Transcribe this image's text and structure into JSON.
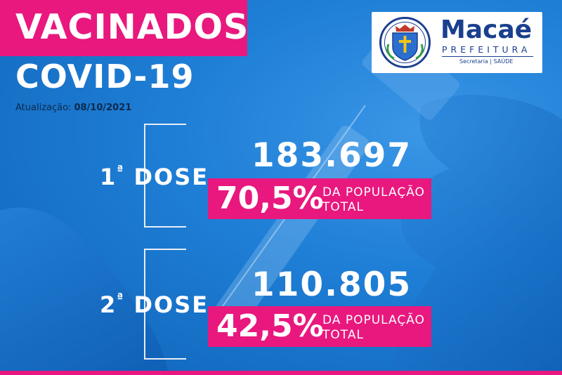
{
  "header": {
    "title": "VACINADOS",
    "subtitle": "COVID-19"
  },
  "update": {
    "label": "Atualização:",
    "date": "08/10/2021"
  },
  "logo": {
    "name": "Macaé",
    "tagline": "PREFEITURA",
    "department": "Secretaria | SAÚDE"
  },
  "doses": [
    {
      "ordinal": "1",
      "suffix": "ª",
      "label": "DOSE",
      "count": "183.697",
      "percent": "70,5%",
      "percent_label_line1": "DA POPULAÇÃO",
      "percent_label_line2": "TOTAL"
    },
    {
      "ordinal": "2",
      "suffix": "ª",
      "label": "DOSE",
      "count": "110.805",
      "percent": "42,5%",
      "percent_label_line1": "DA POPULAÇÃO",
      "percent_label_line2": "TOTAL"
    }
  ],
  "colors": {
    "accent": "#e8187e",
    "background": "#1f7fd6",
    "logo_blue": "#1a3f8f",
    "text_dark": "#0d2a4d"
  }
}
